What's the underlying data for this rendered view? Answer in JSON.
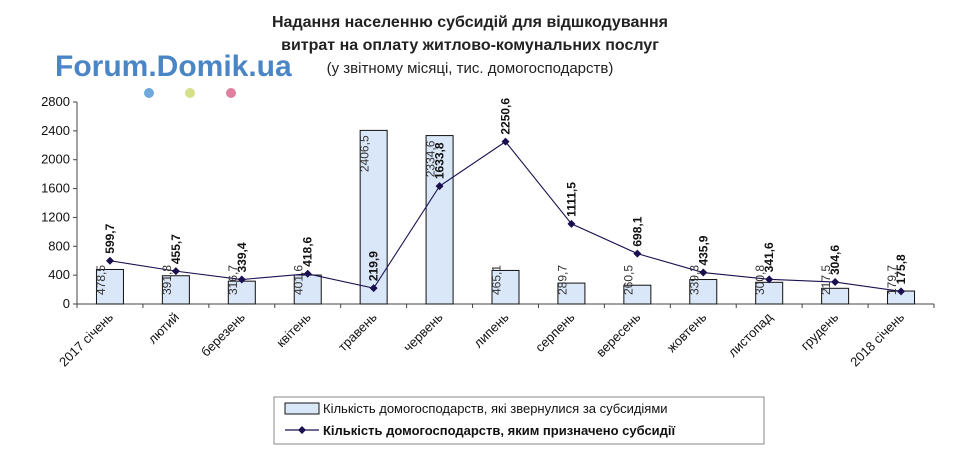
{
  "watermark": {
    "text": "Forum.Domik.ua",
    "dot_colors": [
      "#6fa8dc",
      "#d6e08a",
      "#e07fa0"
    ]
  },
  "chart_data": {
    "type": "bar",
    "title_line1": "Надання населенню субсидій  для відшкодування",
    "title_line2": "витрат на оплату житлово-комунальних послуг",
    "subtitle": "(у звітному місяці, тис. домогосподарств)",
    "categories": [
      "2017 січень",
      "лютий",
      "березень",
      "квітень",
      "травень",
      "червень",
      "липень",
      "серпень",
      "вересень",
      "жовтень",
      "листопад",
      "грудень",
      "2018 січень"
    ],
    "ylim": [
      0,
      2800
    ],
    "yticks": [
      "0",
      "400",
      "800",
      "1200",
      "1600",
      "2000",
      "2400",
      "2800"
    ],
    "grid": false,
    "legend_position": "bottom",
    "series": [
      {
        "name": "Кількість домогосподарств, які звернулися за субсидіями",
        "kind": "bar",
        "values": [
          478.5,
          391.8,
          316.7,
          401.6,
          2406.5,
          2334.6,
          465.1,
          289.7,
          260.5,
          339.3,
          300.8,
          217.5,
          179.7
        ],
        "labels": [
          "478,5",
          "391,8",
          "316,7",
          "401,6",
          "2406,5",
          "2334,6",
          "465,1",
          "289,7",
          "260,5",
          "339,3",
          "300,8",
          "217,5",
          "179,7"
        ],
        "color": "#dae7f8",
        "border": "#111111"
      },
      {
        "name": "Кількість домогосподарств, яким призначено субсидії",
        "kind": "line",
        "values": [
          599.7,
          455.7,
          339.4,
          418.6,
          219.9,
          1633.8,
          2250.6,
          1111.5,
          698.1,
          435.9,
          341.6,
          304.6,
          175.8
        ],
        "labels": [
          "599,7",
          "455,7",
          "339,4",
          "418,6",
          "219,9",
          "1633,8",
          "2250,6",
          "1111,5",
          "698,1",
          "435,9",
          "341,6",
          "304,6",
          "175,8"
        ],
        "color": "#1a1050"
      }
    ]
  }
}
